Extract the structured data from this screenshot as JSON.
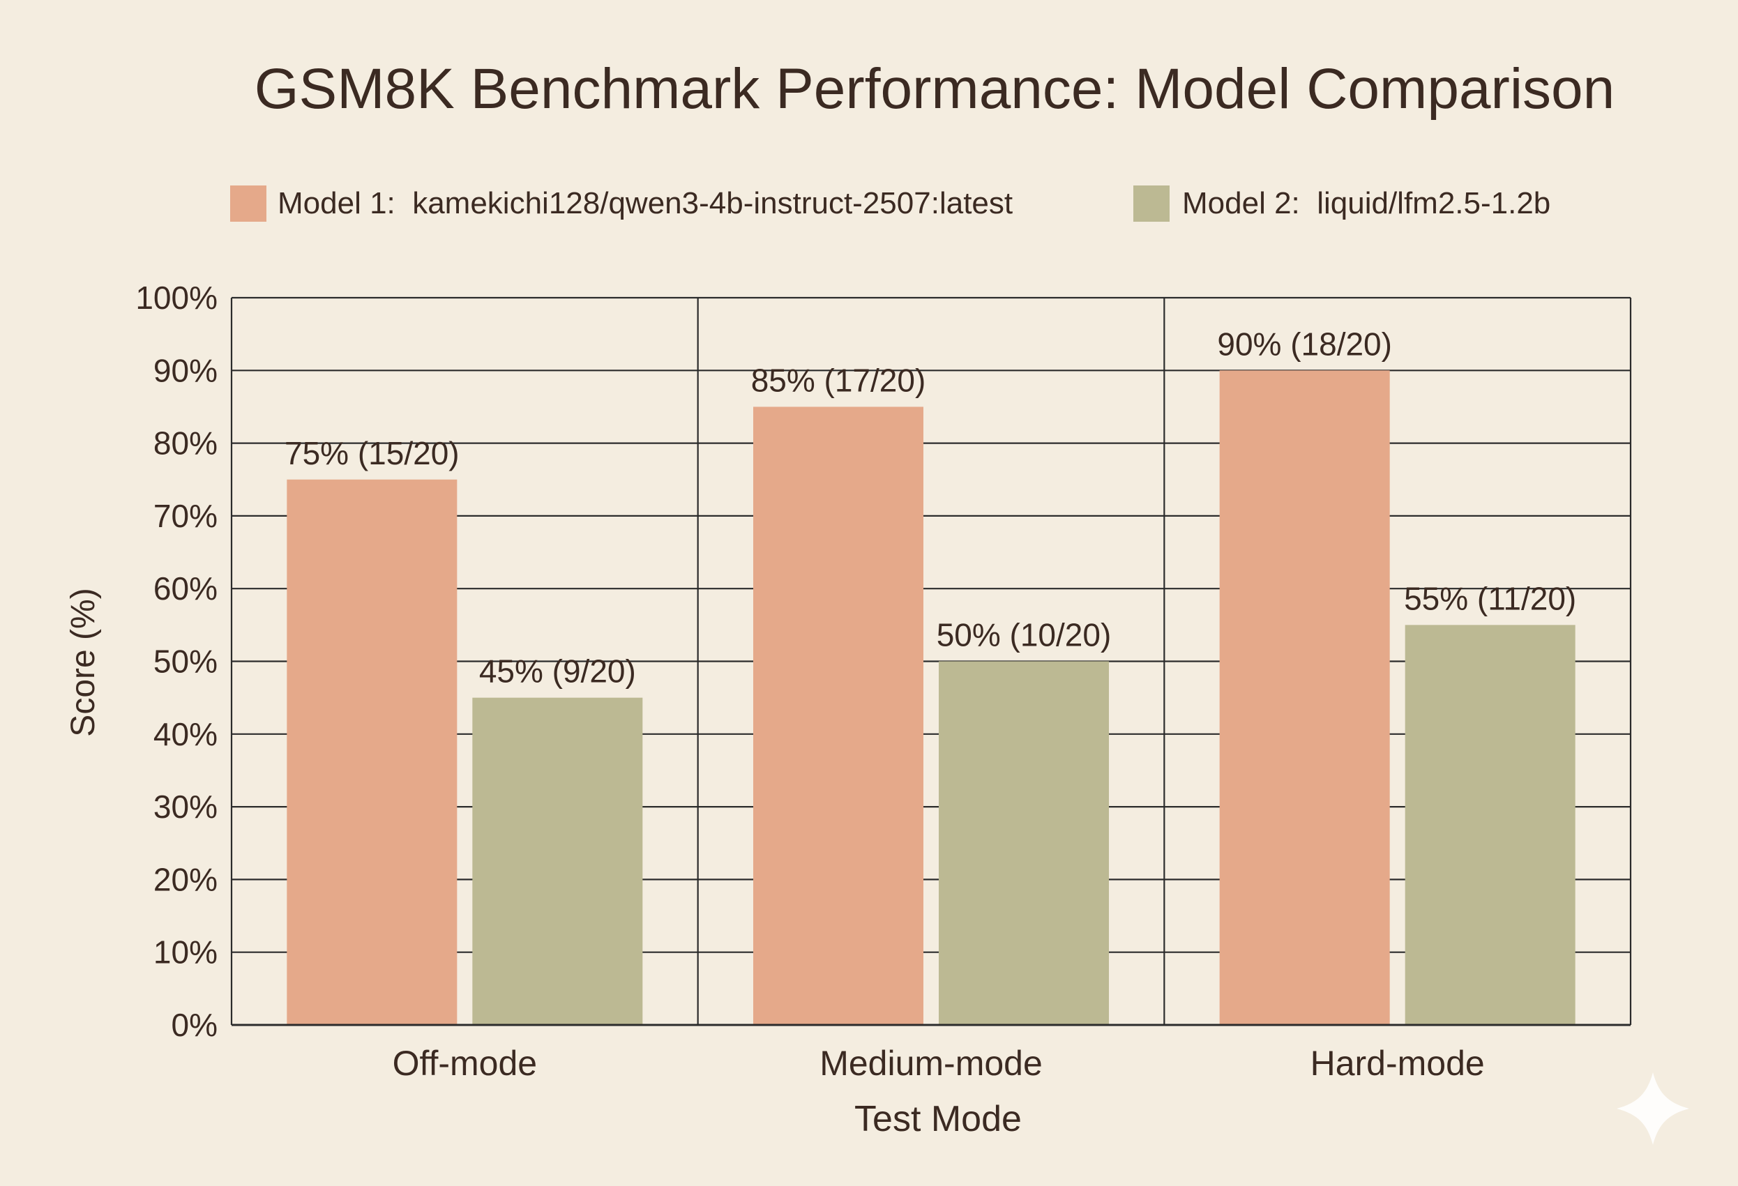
{
  "chart_data": {
    "type": "bar",
    "title": "GSM8K Benchmark Performance: Model Comparison",
    "xlabel": "Test Mode",
    "ylabel": "Score (%)",
    "categories": [
      "Off-mode",
      "Medium-mode",
      "Hard-mode"
    ],
    "series": [
      {
        "name": "Model 1:  kamekichi128/qwen3-4b-instruct-2507:latest",
        "color": "#e5a98a",
        "values": [
          75,
          85,
          90
        ],
        "labels": [
          "75% (15/20)",
          "85% (17/20)",
          "90% (18/20)"
        ]
      },
      {
        "name": "Model 2:  liquid/lfm2.5-1.2b",
        "color": "#bcb993",
        "values": [
          45,
          50,
          55
        ],
        "labels": [
          "45% (9/20)",
          "50% (10/20)",
          "55% (11/20)"
        ]
      }
    ],
    "ylim": [
      0,
      100
    ],
    "yticks": [
      0,
      10,
      20,
      30,
      40,
      50,
      60,
      70,
      80,
      90,
      100
    ],
    "ytick_labels": [
      "0%",
      "10%",
      "20%",
      "30%",
      "40%",
      "50%",
      "60%",
      "70%",
      "80%",
      "90%",
      "100%"
    ],
    "grid": true,
    "legend_position": "top"
  },
  "colors": {
    "background": "#f4ede0",
    "text": "#3b2a22",
    "grid": "#2b2b2b"
  }
}
